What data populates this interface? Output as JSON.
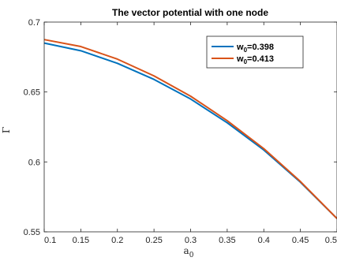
{
  "chart_data": {
    "type": "line",
    "title": "The vector potential with one node",
    "xlabel": "a",
    "xlabel_sub": "0",
    "ylabel": "Γ",
    "xlim": [
      0.1,
      0.5
    ],
    "ylim": [
      0.55,
      0.7
    ],
    "xticks": [
      0.1,
      0.15,
      0.2,
      0.25,
      0.3,
      0.35,
      0.4,
      0.45,
      0.5
    ],
    "yticks": [
      0.55,
      0.6,
      0.65,
      0.7
    ],
    "xtick_labels": [
      "0.1",
      "0.15",
      "0.2",
      "0.25",
      "0.3",
      "0.35",
      "0.4",
      "0.45",
      "0.5"
    ],
    "ytick_labels": [
      "0.55",
      "0.6",
      "0.65",
      "0.7"
    ],
    "legend_position": "top-right",
    "series": [
      {
        "name": "w",
        "name_sub": "0",
        "name_suffix": "=0.398",
        "color": "#0072BD",
        "x": [
          0.1,
          0.15,
          0.2,
          0.25,
          0.3,
          0.35,
          0.4,
          0.45,
          0.5
        ],
        "y": [
          0.685,
          0.6795,
          0.6705,
          0.659,
          0.645,
          0.628,
          0.6085,
          0.5855,
          0.5595
        ]
      },
      {
        "name": "w",
        "name_sub": "0",
        "name_suffix": "=0.413",
        "color": "#D95319",
        "x": [
          0.1,
          0.15,
          0.2,
          0.25,
          0.3,
          0.35,
          0.4,
          0.45,
          0.5
        ],
        "y": [
          0.6875,
          0.6825,
          0.6735,
          0.6615,
          0.647,
          0.6295,
          0.6095,
          0.586,
          0.5595
        ]
      }
    ]
  }
}
